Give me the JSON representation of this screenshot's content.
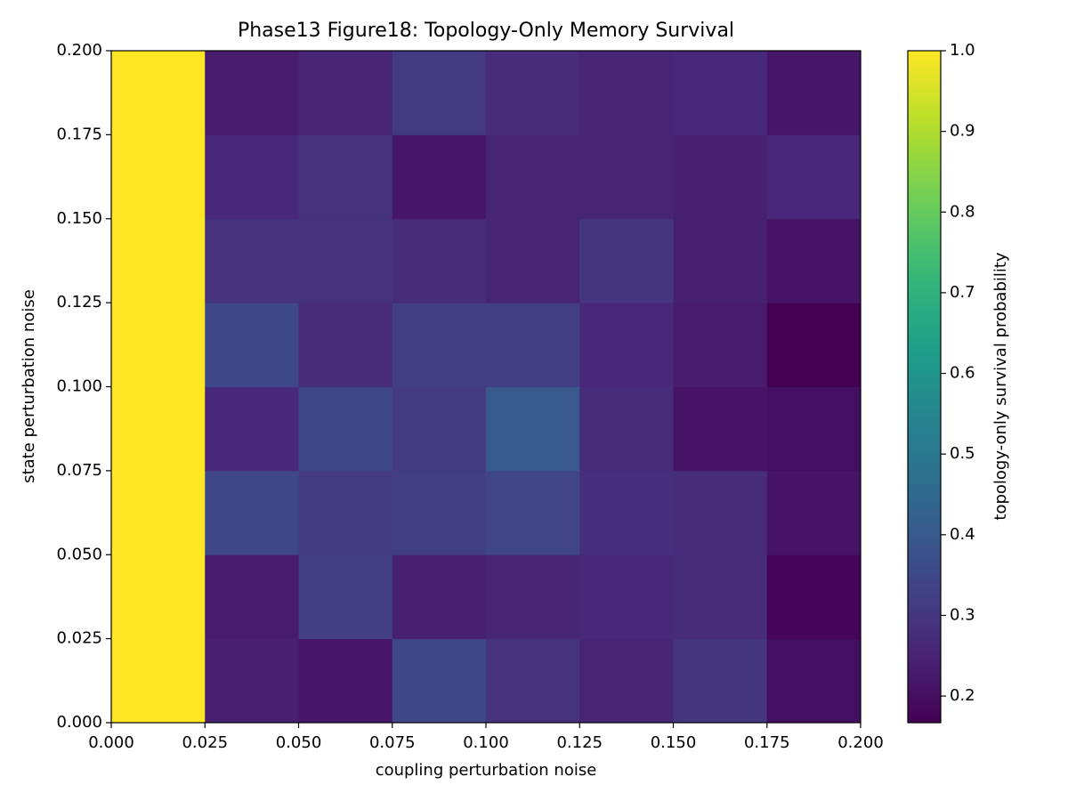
{
  "chart_data": {
    "type": "heatmap",
    "title": "Phase13 Figure18: Topology-Only Memory Survival",
    "x_label": "coupling perturbation noise",
    "y_label": "state perturbation noise",
    "colorbar_label": "topology-only survival probability",
    "colormap": "viridis",
    "xlim": [
      0,
      0.2
    ],
    "ylim": [
      0,
      0.2
    ],
    "xticks": [
      {
        "value": 0,
        "label": "0.000"
      },
      {
        "value": 0.025,
        "label": "0.025"
      },
      {
        "value": 0.05,
        "label": "0.050"
      },
      {
        "value": 0.075,
        "label": "0.075"
      },
      {
        "value": 0.1,
        "label": "0.100"
      },
      {
        "value": 0.125,
        "label": "0.125"
      },
      {
        "value": 0.15,
        "label": "0.150"
      },
      {
        "value": 0.175,
        "label": "0.175"
      },
      {
        "value": 0.2,
        "label": "0.200"
      }
    ],
    "yticks": [
      {
        "value": 0,
        "label": "0.000"
      },
      {
        "value": 0.025,
        "label": "0.025"
      },
      {
        "value": 0.05,
        "label": "0.050"
      },
      {
        "value": 0.075,
        "label": "0.075"
      },
      {
        "value": 0.1,
        "label": "0.100"
      },
      {
        "value": 0.125,
        "label": "0.125"
      },
      {
        "value": 0.15,
        "label": "0.150"
      },
      {
        "value": 0.175,
        "label": "0.175"
      },
      {
        "value": 0.2,
        "label": "0.200"
      }
    ],
    "clim": [
      0.167,
      1.0
    ],
    "cticks": [
      0.2,
      0.3,
      0.4,
      0.5,
      0.6,
      0.7,
      0.8,
      0.9,
      {
        "value": 1,
        "label": "1.0"
      }
    ],
    "values": [
      [
        1.0,
        0.24,
        0.22,
        0.35,
        0.29,
        0.25,
        0.3,
        0.2
      ],
      [
        1.0,
        0.23,
        0.32,
        0.24,
        0.25,
        0.26,
        0.27,
        0.18
      ],
      [
        1.0,
        0.35,
        0.31,
        0.32,
        0.34,
        0.28,
        0.27,
        0.21
      ],
      [
        1.0,
        0.26,
        0.35,
        0.31,
        0.4,
        0.27,
        0.21,
        0.2
      ],
      [
        1.0,
        0.35,
        0.27,
        0.32,
        0.32,
        0.26,
        0.23,
        0.167
      ],
      [
        1.0,
        0.29,
        0.29,
        0.27,
        0.25,
        0.3,
        0.24,
        0.21
      ],
      [
        1.0,
        0.26,
        0.29,
        0.22,
        0.25,
        0.25,
        0.24,
        0.26
      ],
      [
        1.0,
        0.23,
        0.25,
        0.31,
        0.27,
        0.25,
        0.26,
        0.22
      ]
    ]
  }
}
